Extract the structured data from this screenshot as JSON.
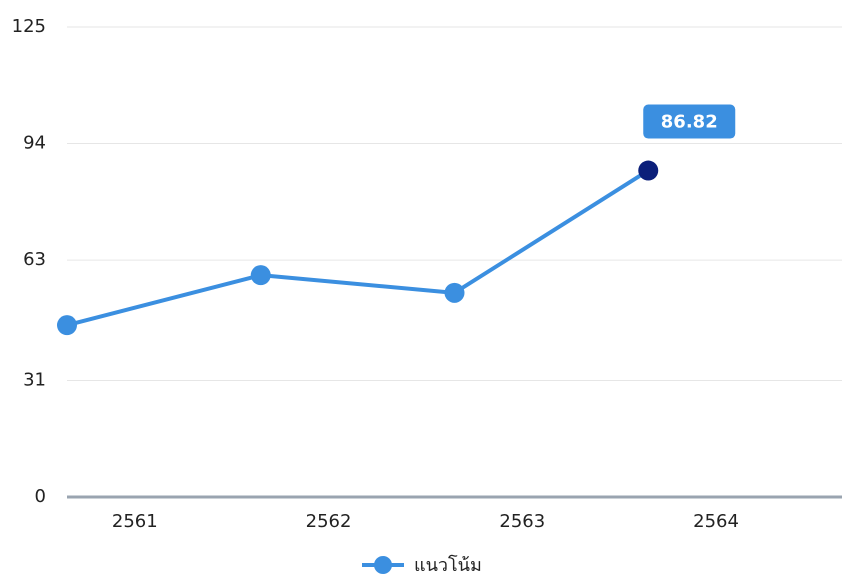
{
  "chart_data": {
    "type": "line",
    "categories": [
      "2561",
      "2562",
      "2563",
      "2564"
    ],
    "series": [
      {
        "name": "แนวโน้ม",
        "color": "#3b8fe0",
        "values": [
          45.7,
          59,
          54.3,
          86.82
        ]
      }
    ],
    "highlight_color": "#0b1f7a",
    "ylim": [
      0,
      125
    ],
    "yticks": [
      0,
      31,
      63,
      94,
      125
    ],
    "grid": true,
    "legend": "bottom"
  }
}
